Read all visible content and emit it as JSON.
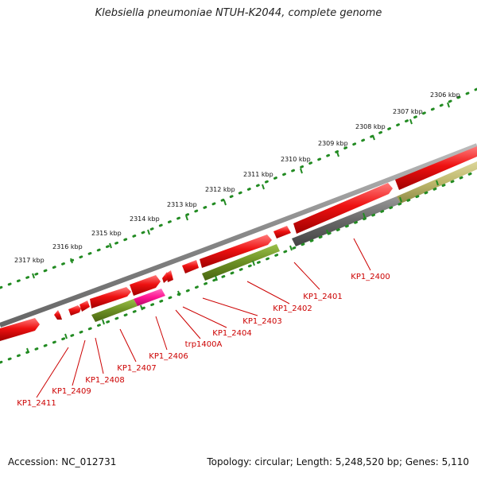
{
  "title": "Klebsiella pneumoniae NTUH-K2044, complete genome",
  "footer": {
    "accession": "Accession: NC_012731",
    "summary": "Topology: circular; Length: 5,248,520 bp; Genes: 5,110"
  },
  "scale_labels": [
    "2317 kbp",
    "2316 kbp",
    "2315 kbp",
    "2314 kbp",
    "2313 kbp",
    "2312 kbp",
    "2311 kbp",
    "2310 kbp",
    "2309 kbp",
    "2308 kbp",
    "2307 kbp",
    "2306 kbp"
  ],
  "gene_labels": [
    "KP1_2400",
    "KP1_2401",
    "KP1_2402",
    "KP1_2403",
    "KP1_2404",
    "trp1400A",
    "KP1_2406",
    "KP1_2407",
    "KP1_2408",
    "KP1_2409",
    "KP1_2411"
  ],
  "colors": {
    "cds_red": "#ee1111",
    "gene_gray": "#666666",
    "gene_olive": "#6b8e23",
    "gene_khaki": "#bdb76b",
    "gene_magenta": "#ff1493",
    "backbone": "#888888",
    "ticks": "#228b22",
    "label": "#cc0000"
  }
}
